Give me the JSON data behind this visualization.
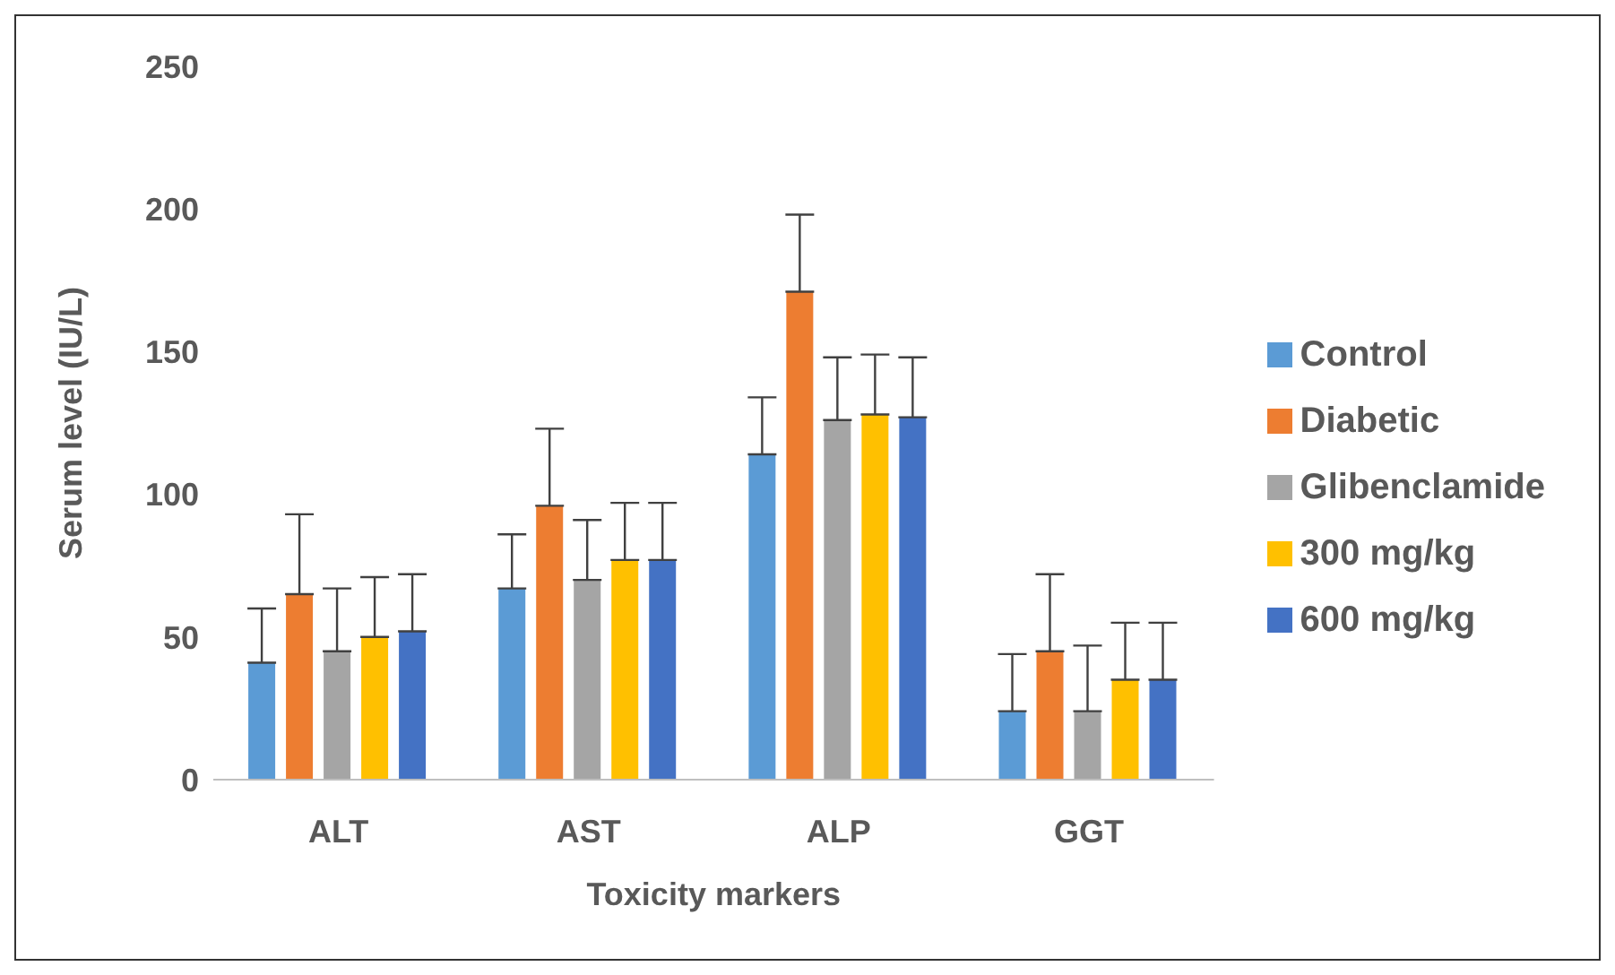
{
  "chart_data": {
    "type": "bar",
    "xlabel": "Toxicity markers",
    "ylabel": "Serum level (IU/L)",
    "categories": [
      "ALT",
      "AST",
      "ALP",
      "GGT"
    ],
    "series": [
      {
        "name": "Control",
        "color": "#5b9bd5",
        "values": [
          41,
          67,
          114,
          24
        ],
        "errors": [
          [
            41,
            60
          ],
          [
            67,
            86
          ],
          [
            114,
            134
          ],
          [
            24,
            44
          ]
        ]
      },
      {
        "name": "Diabetic",
        "color": "#ed7d31",
        "values": [
          65,
          96,
          171,
          45
        ],
        "errors": [
          [
            65,
            93
          ],
          [
            96,
            123
          ],
          [
            171,
            198
          ],
          [
            45,
            72
          ]
        ]
      },
      {
        "name": "Glibenclamide",
        "color": "#a5a5a5",
        "values": [
          45,
          70,
          126,
          24
        ],
        "errors": [
          [
            45,
            67
          ],
          [
            70,
            91
          ],
          [
            126,
            148
          ],
          [
            24,
            47
          ]
        ]
      },
      {
        "name": "300 mg/kg",
        "color": "#ffc000",
        "values": [
          50,
          77,
          128,
          35
        ],
        "errors": [
          [
            50,
            71
          ],
          [
            77,
            97
          ],
          [
            128,
            149
          ],
          [
            35,
            55
          ]
        ]
      },
      {
        "name": "600 mg/kg",
        "color": "#4472c4",
        "values": [
          52,
          77,
          127,
          35
        ],
        "errors": [
          [
            52,
            72
          ],
          [
            77,
            97
          ],
          [
            127,
            148
          ],
          [
            35,
            55
          ]
        ]
      }
    ],
    "ylim": [
      0,
      250
    ],
    "yticks": [
      0,
      50,
      100,
      150,
      200,
      250
    ],
    "grid": false,
    "legend": "right"
  }
}
